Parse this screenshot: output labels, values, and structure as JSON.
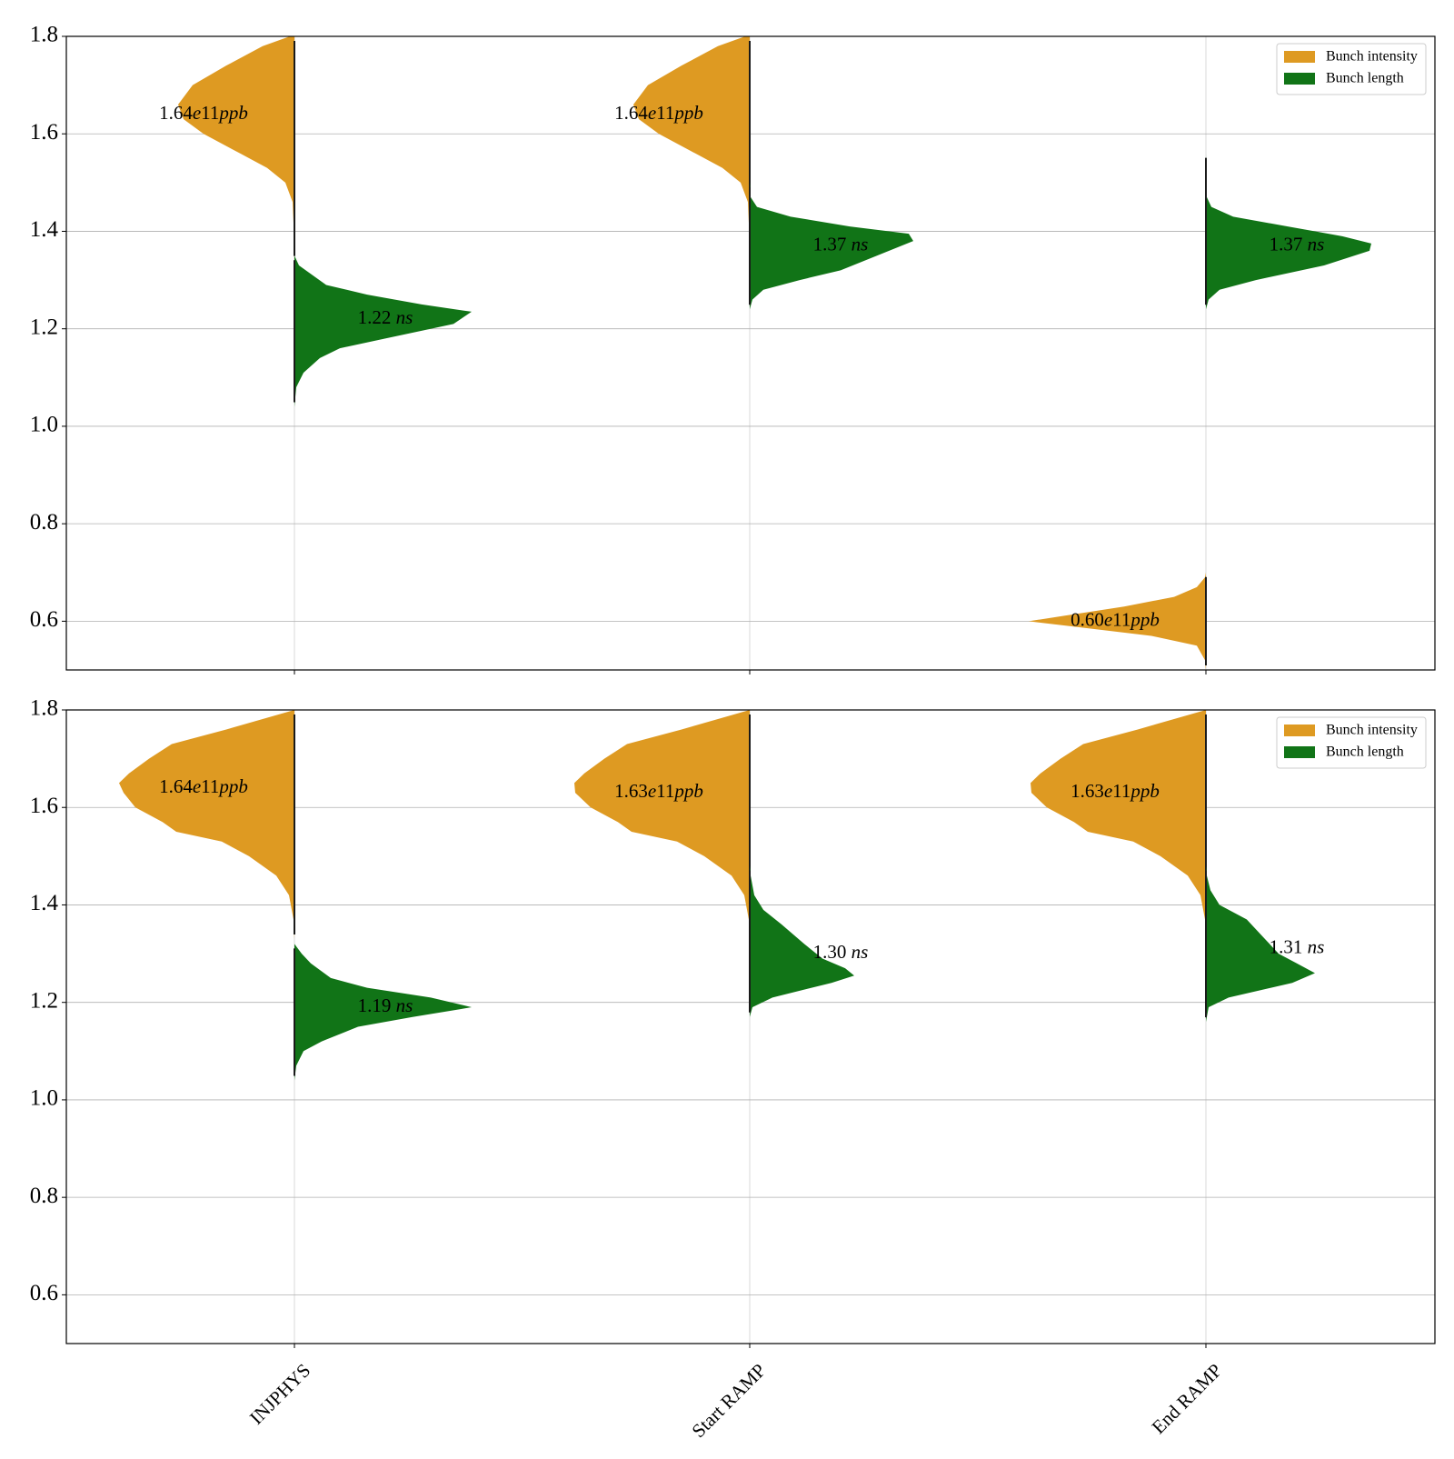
{
  "colors": {
    "intensity": "#DE9A22",
    "length": "#117417",
    "grid": "#b0b0b0",
    "spine": "#000000"
  },
  "chart_data": [
    {
      "type": "violin",
      "panel": "top",
      "ylim": [
        0.5,
        1.8
      ],
      "yticks": [
        0.6,
        0.8,
        1.0,
        1.2,
        1.4,
        1.6,
        1.8
      ],
      "categories": [
        "INJPHYS",
        "Start RAMP",
        "End RAMP"
      ],
      "grid": true,
      "legend": {
        "placement": "top-right",
        "entries": [
          "Bunch intensity",
          "Bunch length"
        ]
      },
      "series": [
        {
          "name": "Bunch intensity",
          "side": "left",
          "violins": [
            {
              "category": "INJPHYS",
              "median": 1.64,
              "label": "1.64e11ppb",
              "profile": [
                [
                  1.34,
                  0
                ],
                [
                  1.4,
                  0.6
                ],
                [
                  1.46,
                  2
                ],
                [
                  1.5,
                  10
                ],
                [
                  1.53,
                  30
                ],
                [
                  1.56,
                  60
                ],
                [
                  1.6,
                  100
                ],
                [
                  1.63,
                  122
                ],
                [
                  1.66,
                  128
                ],
                [
                  1.7,
                  112
                ],
                [
                  1.74,
                  75
                ],
                [
                  1.78,
                  35
                ],
                [
                  1.8,
                  5
                ]
              ]
            },
            {
              "category": "Start RAMP",
              "median": 1.64,
              "label": "1.64e11ppb",
              "profile": [
                [
                  1.33,
                  0
                ],
                [
                  1.4,
                  0.6
                ],
                [
                  1.46,
                  2
                ],
                [
                  1.5,
                  10
                ],
                [
                  1.53,
                  30
                ],
                [
                  1.56,
                  60
                ],
                [
                  1.6,
                  100
                ],
                [
                  1.63,
                  122
                ],
                [
                  1.66,
                  128
                ],
                [
                  1.7,
                  112
                ],
                [
                  1.74,
                  75
                ],
                [
                  1.78,
                  35
                ],
                [
                  1.8,
                  5
                ]
              ]
            },
            {
              "category": "End RAMP",
              "median": 0.6,
              "label": "0.60e11ppb",
              "profile": [
                [
                  0.5,
                  0
                ],
                [
                  0.52,
                  1
                ],
                [
                  0.55,
                  10
                ],
                [
                  0.57,
                  60
                ],
                [
                  0.59,
                  150
                ],
                [
                  0.6,
                  195
                ],
                [
                  0.61,
                  160
                ],
                [
                  0.63,
                  90
                ],
                [
                  0.65,
                  35
                ],
                [
                  0.67,
                  10
                ],
                [
                  0.69,
                  1
                ],
                [
                  0.7,
                  0
                ]
              ]
            }
          ]
        },
        {
          "name": "Bunch length",
          "side": "right",
          "violins": [
            {
              "category": "INJPHYS",
              "median": 1.22,
              "label": "1.22 ns",
              "profile": [
                [
                  1.04,
                  0
                ],
                [
                  1.08,
                  2
                ],
                [
                  1.11,
                  10
                ],
                [
                  1.14,
                  28
                ],
                [
                  1.16,
                  50
                ],
                [
                  1.18,
                  100
                ],
                [
                  1.21,
                  175
                ],
                [
                  1.235,
                  195
                ],
                [
                  1.25,
                  140
                ],
                [
                  1.27,
                  80
                ],
                [
                  1.29,
                  35
                ],
                [
                  1.31,
                  20
                ],
                [
                  1.33,
                  5
                ],
                [
                  1.35,
                  0
                ]
              ]
            },
            {
              "category": "Start RAMP",
              "median": 1.37,
              "label": "1.37 ns",
              "profile": [
                [
                  1.24,
                  0
                ],
                [
                  1.26,
                  3
                ],
                [
                  1.28,
                  15
                ],
                [
                  1.3,
                  55
                ],
                [
                  1.32,
                  100
                ],
                [
                  1.35,
                  140
                ],
                [
                  1.38,
                  180
                ],
                [
                  1.395,
                  175
                ],
                [
                  1.41,
                  110
                ],
                [
                  1.43,
                  45
                ],
                [
                  1.45,
                  8
                ],
                [
                  1.47,
                  1
                ],
                [
                  1.5,
                  0
                ]
              ]
            },
            {
              "category": "End RAMP",
              "median": 1.37,
              "label": "1.37 ns",
              "profile": [
                [
                  1.24,
                  0
                ],
                [
                  1.26,
                  3
                ],
                [
                  1.28,
                  15
                ],
                [
                  1.3,
                  55
                ],
                [
                  1.33,
                  130
                ],
                [
                  1.36,
                  180
                ],
                [
                  1.375,
                  182
                ],
                [
                  1.39,
                  150
                ],
                [
                  1.41,
                  90
                ],
                [
                  1.43,
                  30
                ],
                [
                  1.45,
                  6
                ],
                [
                  1.47,
                  1
                ],
                [
                  1.52,
                  0.3
                ],
                [
                  1.56,
                  0
                ]
              ]
            }
          ]
        }
      ]
    },
    {
      "type": "violin",
      "panel": "bottom",
      "ylim": [
        0.5,
        1.8
      ],
      "yticks": [
        0.6,
        0.8,
        1.0,
        1.2,
        1.4,
        1.6,
        1.8
      ],
      "categories": [
        "INJPHYS",
        "Start RAMP",
        "End RAMP"
      ],
      "grid": true,
      "legend": {
        "placement": "top-right",
        "entries": [
          "Bunch intensity",
          "Bunch length"
        ]
      },
      "series": [
        {
          "name": "Bunch intensity",
          "side": "left",
          "violins": [
            {
              "category": "INJPHYS",
              "median": 1.64,
              "label": "1.64e11ppb",
              "profile": [
                [
                  1.33,
                  0
                ],
                [
                  1.37,
                  1
                ],
                [
                  1.42,
                  6
                ],
                [
                  1.46,
                  20
                ],
                [
                  1.5,
                  50
                ],
                [
                  1.53,
                  80
                ],
                [
                  1.55,
                  130
                ],
                [
                  1.57,
                  145
                ],
                [
                  1.6,
                  175
                ],
                [
                  1.63,
                  188
                ],
                [
                  1.65,
                  193
                ],
                [
                  1.67,
                  182
                ],
                [
                  1.7,
                  160
                ],
                [
                  1.73,
                  135
                ],
                [
                  1.76,
                  75
                ],
                [
                  1.8,
                  0
                ]
              ]
            },
            {
              "category": "Start RAMP",
              "median": 1.63,
              "label": "1.63e11ppb",
              "profile": [
                [
                  1.33,
                  0
                ],
                [
                  1.37,
                  1
                ],
                [
                  1.42,
                  6
                ],
                [
                  1.46,
                  20
                ],
                [
                  1.5,
                  50
                ],
                [
                  1.53,
                  80
                ],
                [
                  1.55,
                  130
                ],
                [
                  1.57,
                  145
                ],
                [
                  1.6,
                  175
                ],
                [
                  1.63,
                  192
                ],
                [
                  1.65,
                  193
                ],
                [
                  1.67,
                  182
                ],
                [
                  1.7,
                  160
                ],
                [
                  1.73,
                  135
                ],
                [
                  1.76,
                  75
                ],
                [
                  1.8,
                  0
                ]
              ]
            },
            {
              "category": "End RAMP",
              "median": 1.63,
              "label": "1.63e11ppb",
              "profile": [
                [
                  1.33,
                  0
                ],
                [
                  1.37,
                  1
                ],
                [
                  1.42,
                  6
                ],
                [
                  1.46,
                  20
                ],
                [
                  1.5,
                  50
                ],
                [
                  1.53,
                  80
                ],
                [
                  1.55,
                  130
                ],
                [
                  1.57,
                  145
                ],
                [
                  1.6,
                  175
                ],
                [
                  1.63,
                  192
                ],
                [
                  1.65,
                  193
                ],
                [
                  1.67,
                  182
                ],
                [
                  1.7,
                  160
                ],
                [
                  1.73,
                  135
                ],
                [
                  1.76,
                  75
                ],
                [
                  1.8,
                  0
                ]
              ]
            }
          ]
        },
        {
          "name": "Bunch length",
          "side": "right",
          "violins": [
            {
              "category": "INJPHYS",
              "median": 1.19,
              "label": "1.19 ns",
              "profile": [
                [
                  1.04,
                  0
                ],
                [
                  1.07,
                  2
                ],
                [
                  1.1,
                  10
                ],
                [
                  1.12,
                  30
                ],
                [
                  1.15,
                  70
                ],
                [
                  1.17,
                  130
                ],
                [
                  1.19,
                  195
                ],
                [
                  1.21,
                  150
                ],
                [
                  1.23,
                  80
                ],
                [
                  1.25,
                  40
                ],
                [
                  1.28,
                  18
                ],
                [
                  1.3,
                  8
                ],
                [
                  1.32,
                  0
                ]
              ]
            },
            {
              "category": "Start RAMP",
              "median": 1.3,
              "label": "1.30 ns",
              "profile": [
                [
                  1.17,
                  0
                ],
                [
                  1.19,
                  3
                ],
                [
                  1.21,
                  25
                ],
                [
                  1.24,
                  90
                ],
                [
                  1.255,
                  115
                ],
                [
                  1.27,
                  105
                ],
                [
                  1.29,
                  80
                ],
                [
                  1.32,
                  60
                ],
                [
                  1.36,
                  35
                ],
                [
                  1.39,
                  15
                ],
                [
                  1.42,
                  5
                ],
                [
                  1.46,
                  1
                ],
                [
                  1.48,
                  0
                ]
              ]
            },
            {
              "category": "End RAMP",
              "median": 1.31,
              "label": "1.31 ns",
              "profile": [
                [
                  1.16,
                  0
                ],
                [
                  1.19,
                  3
                ],
                [
                  1.21,
                  25
                ],
                [
                  1.24,
                  95
                ],
                [
                  1.26,
                  120
                ],
                [
                  1.28,
                  100
                ],
                [
                  1.3,
                  80
                ],
                [
                  1.33,
                  65
                ],
                [
                  1.37,
                  45
                ],
                [
                  1.4,
                  15
                ],
                [
                  1.43,
                  5
                ],
                [
                  1.46,
                  1
                ],
                [
                  1.48,
                  0
                ]
              ]
            }
          ]
        }
      ]
    }
  ]
}
